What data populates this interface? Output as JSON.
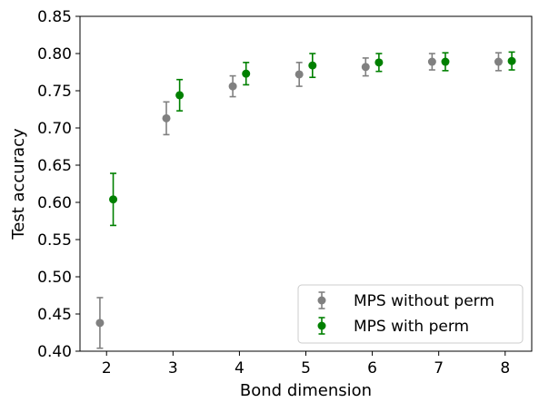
{
  "chart_data": {
    "type": "scatter",
    "title": "",
    "xlabel": "Bond dimension",
    "ylabel": "Test accuracy",
    "xlim": [
      1.6,
      8.4
    ],
    "ylim": [
      0.4,
      0.85
    ],
    "xticks": [
      2,
      3,
      4,
      5,
      6,
      7,
      8
    ],
    "yticks": [
      0.4,
      0.45,
      0.5,
      0.55,
      0.6,
      0.65,
      0.7,
      0.75,
      0.8,
      0.85
    ],
    "grid": false,
    "legend_position": "bottom-right",
    "series": [
      {
        "name": "MPS without perm",
        "color": "#808080",
        "marker": "circle",
        "x": [
          1.9,
          2.9,
          3.9,
          4.9,
          5.9,
          6.9,
          7.9
        ],
        "y": [
          0.438,
          0.713,
          0.756,
          0.772,
          0.782,
          0.789,
          0.789
        ],
        "yerr": [
          0.034,
          0.022,
          0.014,
          0.016,
          0.012,
          0.011,
          0.012
        ]
      },
      {
        "name": "MPS with perm",
        "color": "#008000",
        "marker": "circle",
        "x": [
          2.1,
          3.1,
          4.1,
          5.1,
          6.1,
          7.1,
          8.1
        ],
        "y": [
          0.604,
          0.744,
          0.773,
          0.784,
          0.788,
          0.789,
          0.79
        ],
        "yerr": [
          0.035,
          0.021,
          0.015,
          0.016,
          0.012,
          0.012,
          0.012
        ]
      }
    ]
  }
}
